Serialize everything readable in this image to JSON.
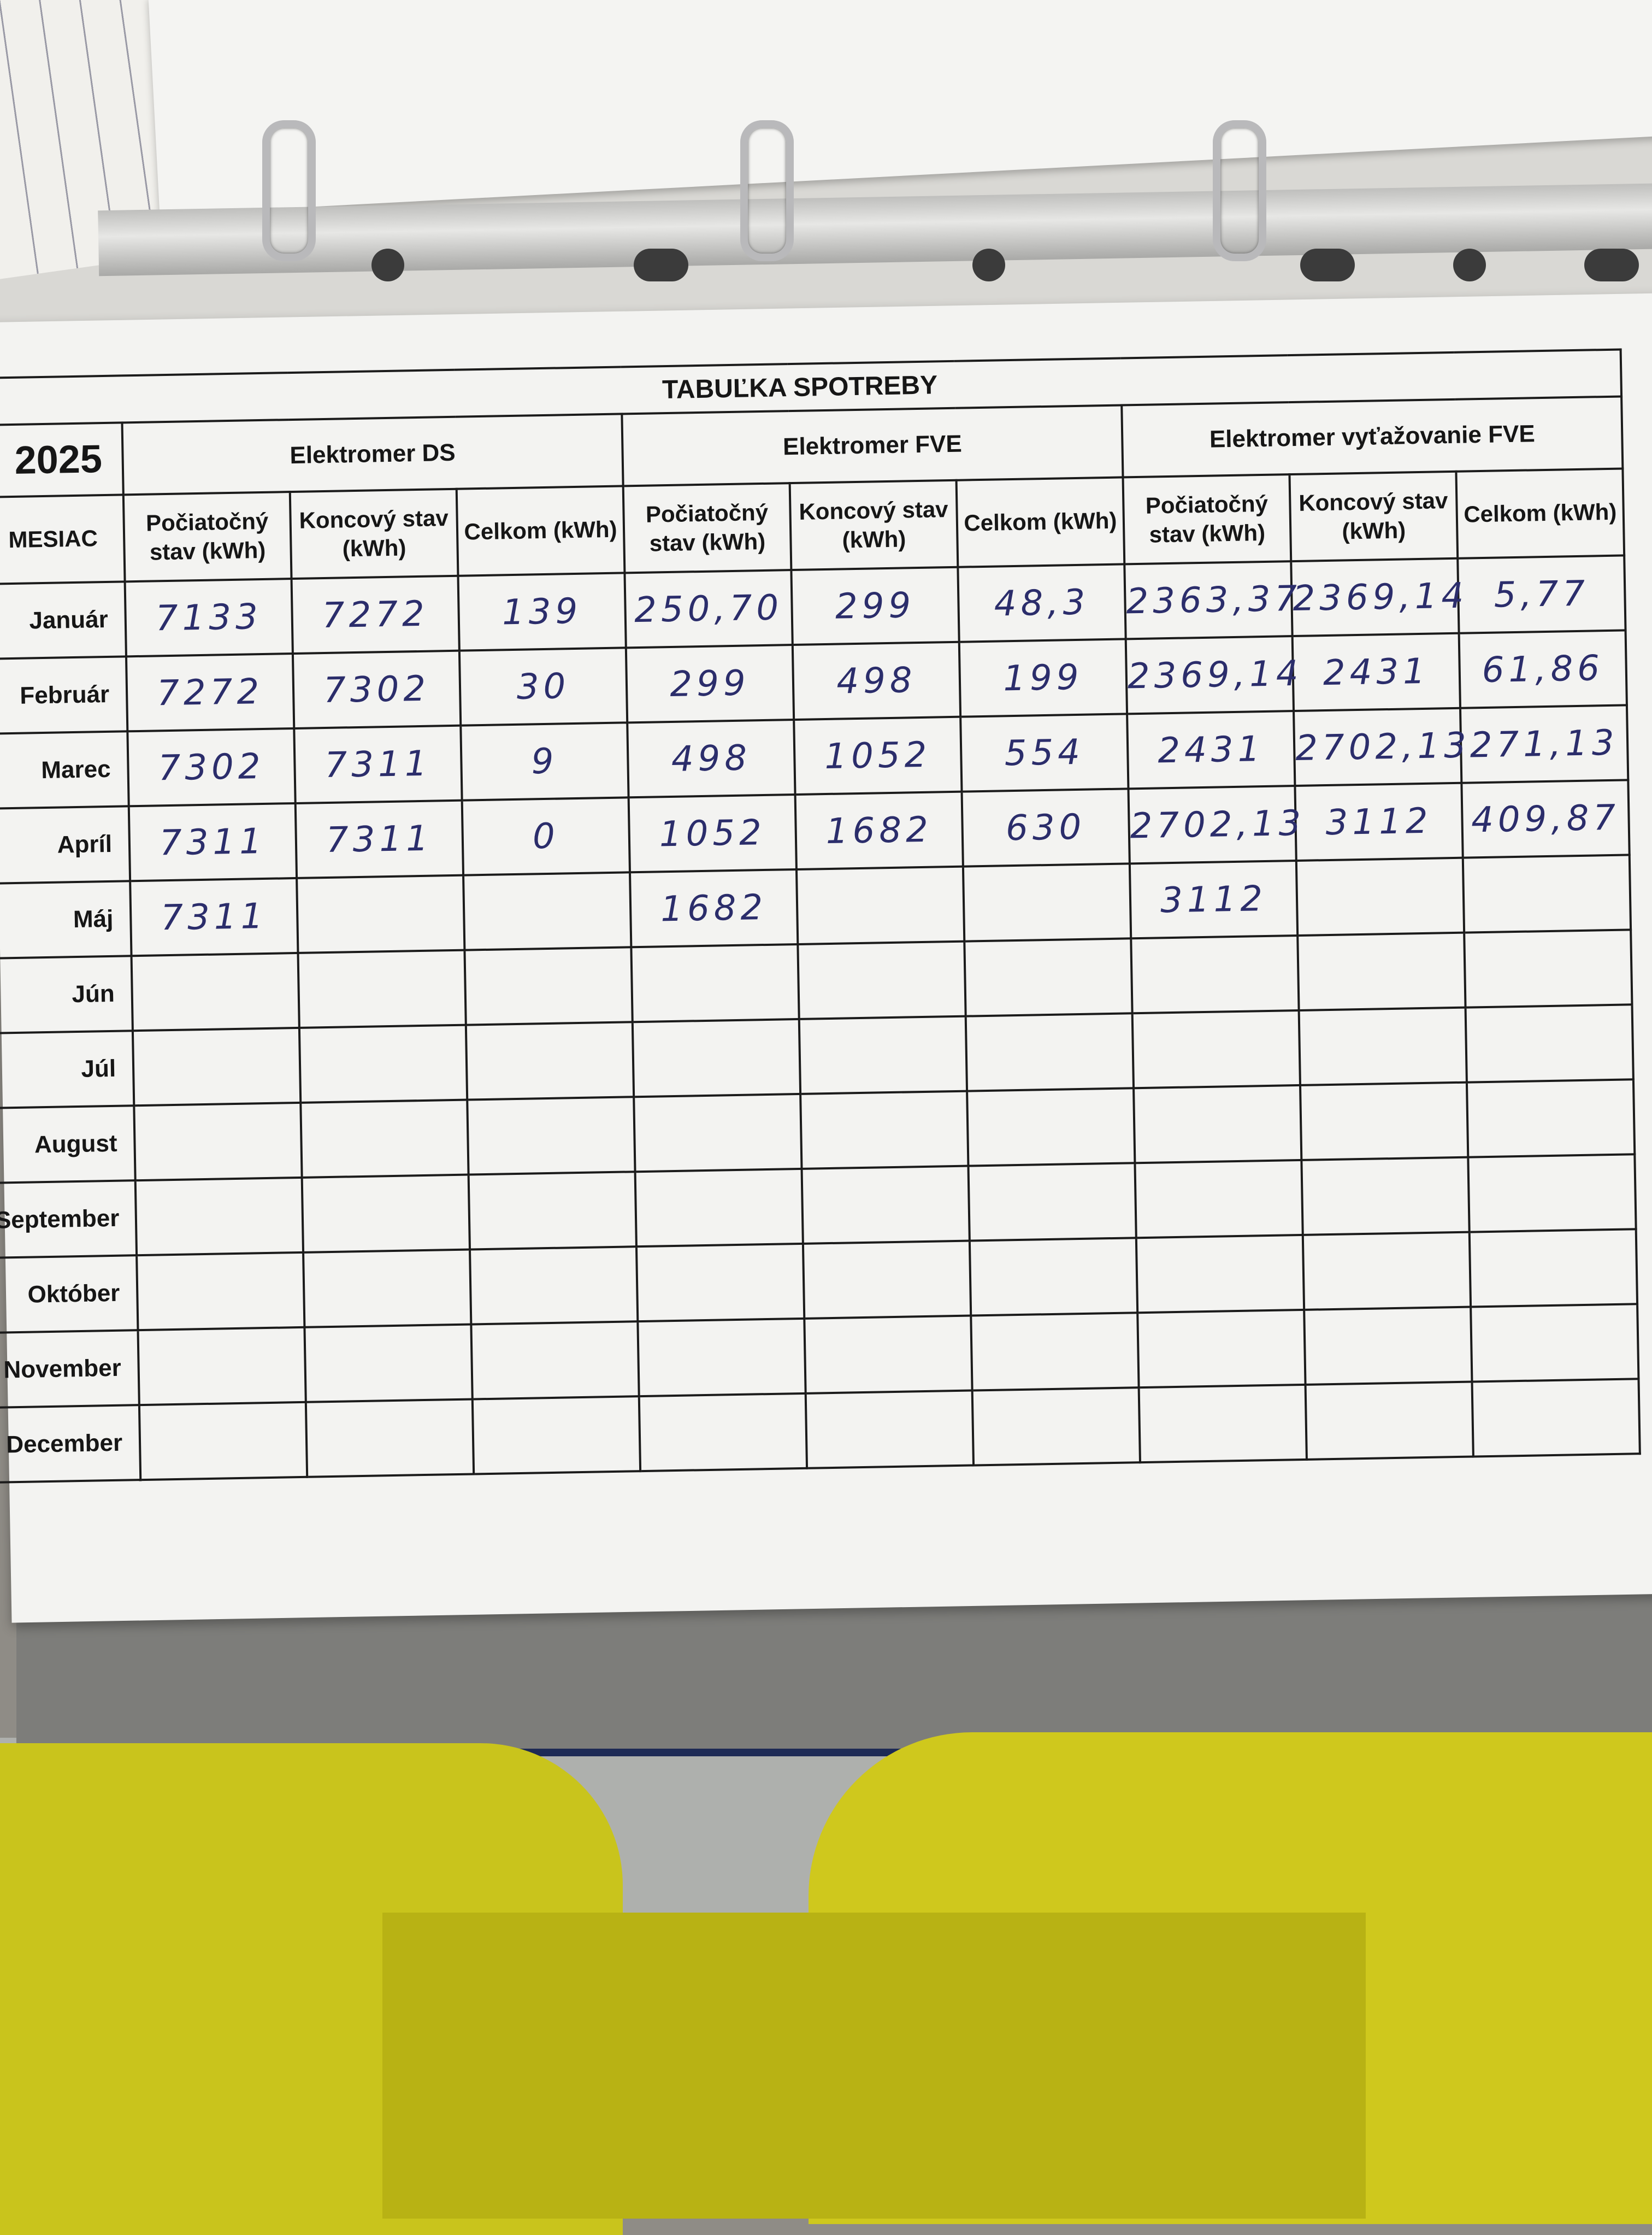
{
  "sheet": {
    "title": "TABUĽKA SPOTREBY",
    "year": "2025",
    "month_label": "MESIAC",
    "groups": [
      "Elektromer DS",
      "Elektromer FVE",
      "Elektromer vyťažovanie FVE"
    ],
    "subheaders": [
      "Počiatočný stav (kWh)",
      "Koncový stav (kWh)",
      "Celkom (kWh)",
      "Počiatočný stav (kWh)",
      "Koncový stav (kWh)",
      "Celkom (kWh)",
      "Počiatočný stav (kWh)",
      "Koncový stav (kWh)",
      "Celkom (kWh)"
    ],
    "rows": [
      {
        "month": "Január",
        "values": [
          "7133",
          "7272",
          "139",
          "250,70",
          "299",
          "48,3",
          "2363,37",
          "2369,14",
          "5,77"
        ]
      },
      {
        "month": "Február",
        "values": [
          "7272",
          "7302",
          "30",
          "299",
          "498",
          "199",
          "2369,14",
          "2431",
          "61,86"
        ]
      },
      {
        "month": "Marec",
        "values": [
          "7302",
          "7311",
          "9",
          "498",
          "1052",
          "554",
          "2431",
          "2702,13",
          "271,13"
        ]
      },
      {
        "month": "Apríl",
        "values": [
          "7311",
          "7311",
          "0",
          "1052",
          "1682",
          "630",
          "2702,13",
          "3112",
          "409,87"
        ]
      },
      {
        "month": "Máj",
        "values": [
          "7311",
          "",
          "",
          "1682",
          "",
          "",
          "3112",
          "",
          ""
        ]
      },
      {
        "month": "Jún",
        "values": [
          "",
          "",
          "",
          "",
          "",
          "",
          "",
          "",
          ""
        ]
      },
      {
        "month": "Júl",
        "values": [
          "",
          "",
          "",
          "",
          "",
          "",
          "",
          "",
          ""
        ]
      },
      {
        "month": "August",
        "values": [
          "",
          "",
          "",
          "",
          "",
          "",
          "",
          "",
          ""
        ]
      },
      {
        "month": "September",
        "values": [
          "",
          "",
          "",
          "",
          "",
          "",
          "",
          "",
          ""
        ]
      },
      {
        "month": "Október",
        "values": [
          "",
          "",
          "",
          "",
          "",
          "",
          "",
          "",
          ""
        ]
      },
      {
        "month": "November",
        "values": [
          "",
          "",
          "",
          "",
          "",
          "",
          "",
          "",
          ""
        ]
      },
      {
        "month": "December",
        "values": [
          "",
          "",
          "",
          "",
          "",
          "",
          "",
          "",
          ""
        ]
      }
    ]
  },
  "colors": {
    "ink": "#2b2d6b",
    "paper": "#f3f3f1",
    "fabric": "#c9c41c",
    "binder_edge": "#1d2a55"
  }
}
